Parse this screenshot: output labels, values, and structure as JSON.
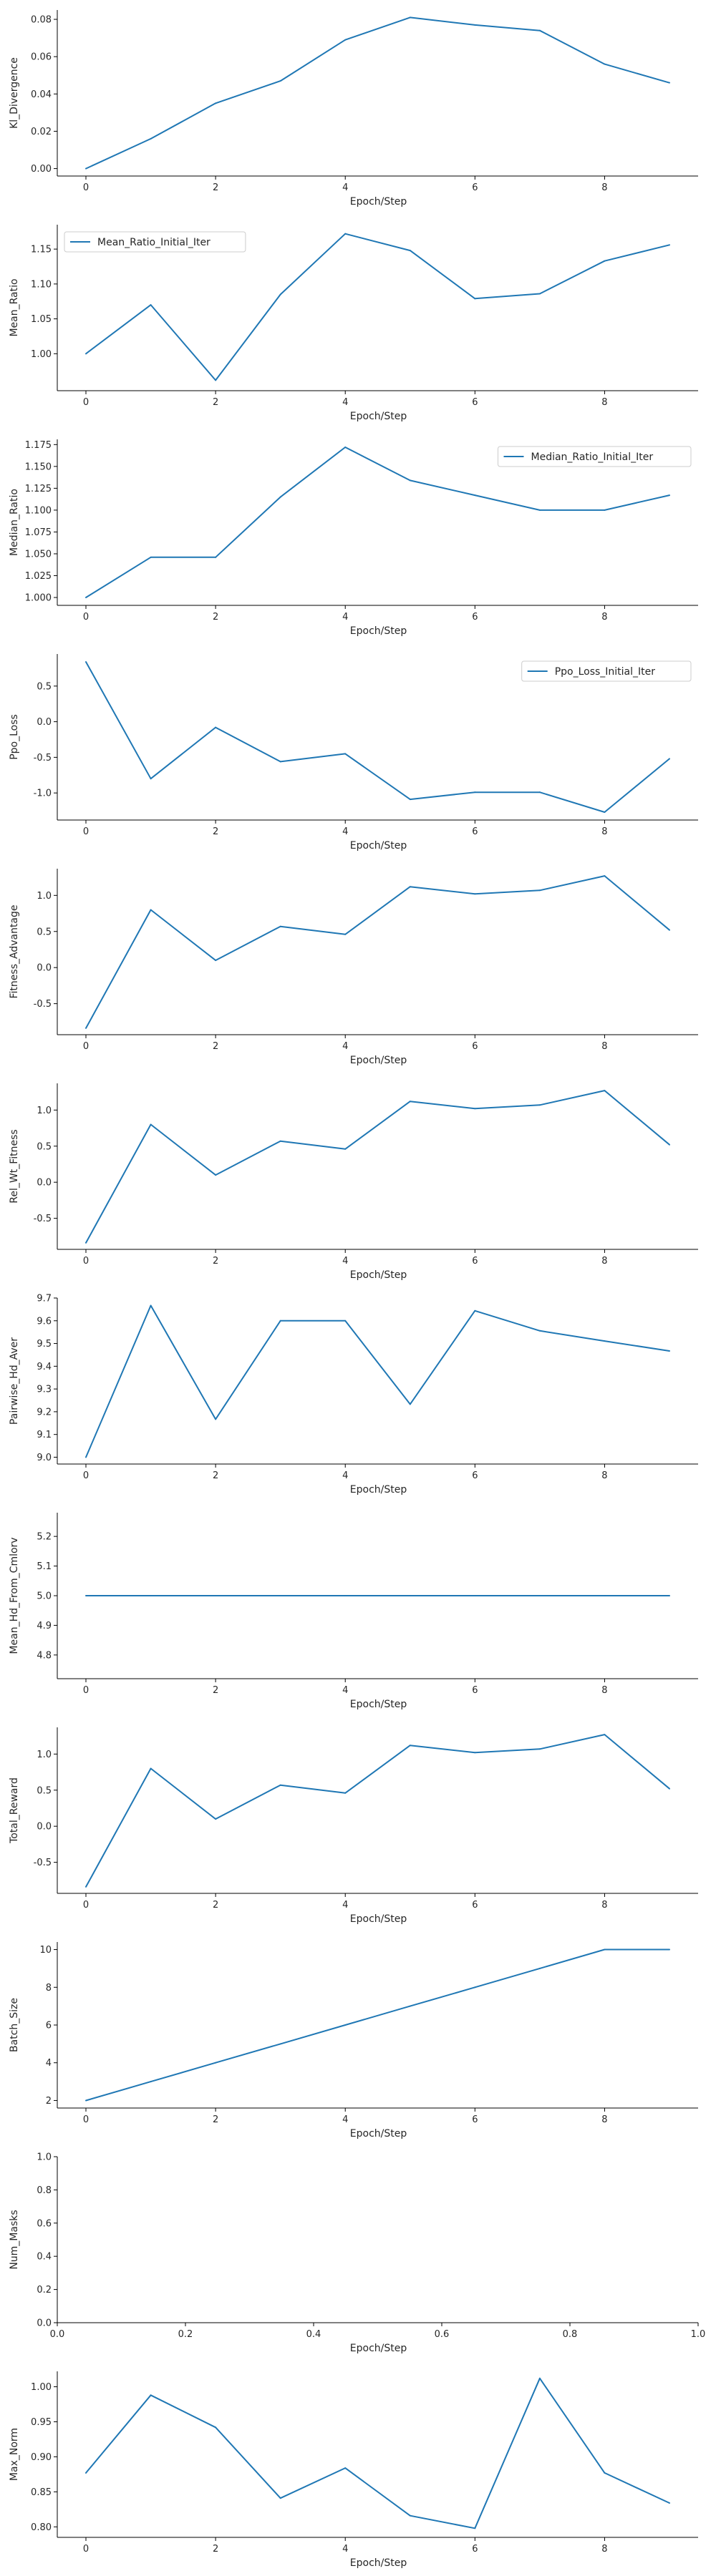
{
  "chart_data": [
    {
      "type": "line",
      "ylabel": "Kl_Divergence",
      "xlabel": "Epoch/Step",
      "x": [
        0,
        1,
        2,
        3,
        4,
        5,
        6,
        7,
        8,
        9
      ],
      "xticks": [
        "0",
        "2",
        "4",
        "6",
        "8"
      ],
      "yticks": [
        "0.00",
        "0.02",
        "0.04",
        "0.06",
        "0.08"
      ],
      "ylim": [
        -0.004,
        0.085
      ],
      "series": [
        {
          "name": "",
          "color": "#1f77b4",
          "values": [
            0.0,
            0.016,
            0.035,
            0.047,
            0.069,
            0.081,
            0.077,
            0.074,
            0.056,
            0.046
          ]
        }
      ]
    },
    {
      "type": "line",
      "ylabel": "Mean_Ratio",
      "xlabel": "Epoch/Step",
      "x": [
        0,
        1,
        2,
        3,
        4,
        5,
        6,
        7,
        8,
        9
      ],
      "xticks": [
        "0",
        "2",
        "4",
        "6",
        "8"
      ],
      "yticks": [
        "1.00",
        "1.05",
        "1.10",
        "1.15"
      ],
      "ylim": [
        0.947,
        1.185
      ],
      "legend": "upper left",
      "series": [
        {
          "name": "Mean_Ratio_Initial_Iter",
          "color": "#1f77b4",
          "values": [
            1.0,
            1.07,
            0.962,
            1.085,
            1.172,
            1.148,
            1.079,
            1.086,
            1.133,
            1.156
          ]
        }
      ]
    },
    {
      "type": "line",
      "ylabel": "Median_Ratio",
      "xlabel": "Epoch/Step",
      "x": [
        0,
        1,
        2,
        3,
        4,
        5,
        6,
        7,
        8,
        9
      ],
      "xticks": [
        "0",
        "2",
        "4",
        "6",
        "8"
      ],
      "yticks": [
        "1.000",
        "1.025",
        "1.050",
        "1.075",
        "1.100",
        "1.125",
        "1.150",
        "1.175"
      ],
      "ylim": [
        0.991,
        1.181
      ],
      "legend": "upper right",
      "series": [
        {
          "name": "Median_Ratio_Initial_Iter",
          "color": "#1f77b4",
          "values": [
            1.0,
            1.046,
            1.046,
            1.115,
            1.172,
            1.134,
            1.117,
            1.1,
            1.1,
            1.117
          ]
        }
      ]
    },
    {
      "type": "line",
      "ylabel": "Ppo_Loss",
      "xlabel": "Epoch/Step",
      "x": [
        0,
        1,
        2,
        3,
        4,
        5,
        6,
        7,
        8,
        9
      ],
      "xticks": [
        "0",
        "2",
        "4",
        "6",
        "8"
      ],
      "yticks": [
        "-1.0",
        "-0.5",
        "0.0",
        "0.5"
      ],
      "ylim": [
        -1.38,
        0.95
      ],
      "legend": "upper right",
      "series": [
        {
          "name": "Ppo_Loss_Initial_Iter",
          "color": "#1f77b4",
          "values": [
            0.84,
            -0.8,
            -0.08,
            -0.56,
            -0.45,
            -1.09,
            -0.99,
            -0.99,
            -1.27,
            -0.52
          ]
        }
      ]
    },
    {
      "type": "line",
      "ylabel": "Fitness_Advantage",
      "xlabel": "Epoch/Step",
      "x": [
        0,
        1,
        2,
        3,
        4,
        5,
        6,
        7,
        8,
        9
      ],
      "xticks": [
        "0",
        "2",
        "4",
        "6",
        "8"
      ],
      "yticks": [
        "-0.5",
        "0.0",
        "0.5",
        "1.0"
      ],
      "ylim": [
        -0.93,
        1.37
      ],
      "series": [
        {
          "name": "",
          "color": "#1f77b4",
          "values": [
            -0.84,
            0.8,
            0.1,
            0.57,
            0.46,
            1.12,
            1.02,
            1.07,
            1.27,
            0.52
          ]
        }
      ]
    },
    {
      "type": "line",
      "ylabel": "Rel_Wt_Fitness",
      "xlabel": "Epoch/Step",
      "x": [
        0,
        1,
        2,
        3,
        4,
        5,
        6,
        7,
        8,
        9
      ],
      "xticks": [
        "0",
        "2",
        "4",
        "6",
        "8"
      ],
      "yticks": [
        "-0.5",
        "0.0",
        "0.5",
        "1.0"
      ],
      "ylim": [
        -0.93,
        1.37
      ],
      "series": [
        {
          "name": "",
          "color": "#1f77b4",
          "values": [
            -0.84,
            0.8,
            0.1,
            0.57,
            0.46,
            1.12,
            1.02,
            1.07,
            1.27,
            0.52
          ]
        }
      ]
    },
    {
      "type": "line",
      "ylabel": "Pairwise_Hd_Aver",
      "xlabel": "Epoch/Step",
      "x": [
        0,
        1,
        2,
        3,
        4,
        5,
        6,
        7,
        8,
        9
      ],
      "xticks": [
        "0",
        "2",
        "4",
        "6",
        "8"
      ],
      "yticks": [
        "9.0",
        "9.1",
        "9.2",
        "9.3",
        "9.4",
        "9.5",
        "9.6",
        "9.7"
      ],
      "ylim": [
        8.97,
        9.7
      ],
      "series": [
        {
          "name": "",
          "color": "#1f77b4",
          "values": [
            9.0,
            9.667,
            9.167,
            9.6,
            9.6,
            9.233,
            9.644,
            9.556,
            9.511,
            9.467
          ]
        }
      ]
    },
    {
      "type": "line",
      "ylabel": "Mean_Hd_From_Cmlorv",
      "xlabel": "Epoch/Step",
      "x": [
        0,
        1,
        2,
        3,
        4,
        5,
        6,
        7,
        8,
        9
      ],
      "xticks": [
        "0",
        "2",
        "4",
        "6",
        "8"
      ],
      "yticks": [
        "4.8",
        "4.9",
        "5.0",
        "5.1",
        "5.2"
      ],
      "ylim": [
        4.72,
        5.28
      ],
      "series": [
        {
          "name": "",
          "color": "#1f77b4",
          "values": [
            5.0,
            5.0,
            5.0,
            5.0,
            5.0,
            5.0,
            5.0,
            5.0,
            5.0,
            5.0
          ]
        }
      ]
    },
    {
      "type": "line",
      "ylabel": "Total_Reward",
      "xlabel": "Epoch/Step",
      "x": [
        0,
        1,
        2,
        3,
        4,
        5,
        6,
        7,
        8,
        9
      ],
      "xticks": [
        "0",
        "2",
        "4",
        "6",
        "8"
      ],
      "yticks": [
        "-0.5",
        "0.0",
        "0.5",
        "1.0"
      ],
      "ylim": [
        -0.93,
        1.37
      ],
      "series": [
        {
          "name": "",
          "color": "#1f77b4",
          "values": [
            -0.84,
            0.8,
            0.1,
            0.57,
            0.46,
            1.12,
            1.02,
            1.07,
            1.27,
            0.52
          ]
        }
      ]
    },
    {
      "type": "line",
      "ylabel": "Batch_Size",
      "xlabel": "Epoch/Step",
      "x": [
        0,
        1,
        2,
        3,
        4,
        5,
        6,
        7,
        8,
        9
      ],
      "xticks": [
        "0",
        "2",
        "4",
        "6",
        "8"
      ],
      "yticks": [
        "2",
        "4",
        "6",
        "8",
        "10"
      ],
      "ylim": [
        1.6,
        10.4
      ],
      "series": [
        {
          "name": "",
          "color": "#1f77b4",
          "values": [
            2,
            3,
            4,
            5,
            6,
            7,
            8,
            9,
            10,
            10
          ]
        }
      ]
    },
    {
      "type": "line",
      "ylabel": "Num_Masks",
      "xlabel": "Epoch/Step",
      "xlim": [
        0,
        1
      ],
      "xticks": [
        "0.0",
        "0.2",
        "0.4",
        "0.6",
        "0.8",
        "1.0"
      ],
      "yticks": [
        "0.0",
        "0.2",
        "0.4",
        "0.6",
        "0.8",
        "1.0"
      ],
      "ylim": [
        0,
        1
      ],
      "series": []
    },
    {
      "type": "line",
      "ylabel": "Max_Norm",
      "xlabel": "Epoch/Step",
      "x": [
        0,
        1,
        2,
        3,
        4,
        5,
        6,
        7,
        8,
        9
      ],
      "xticks": [
        "0",
        "2",
        "4",
        "6",
        "8"
      ],
      "yticks": [
        "0.80",
        "0.85",
        "0.90",
        "0.95",
        "1.00"
      ],
      "ylim": [
        0.785,
        1.022
      ],
      "series": [
        {
          "name": "",
          "color": "#1f77b4",
          "values": [
            0.877,
            0.988,
            0.942,
            0.841,
            0.884,
            0.816,
            0.798,
            1.012,
            0.877,
            0.834
          ]
        }
      ]
    }
  ]
}
